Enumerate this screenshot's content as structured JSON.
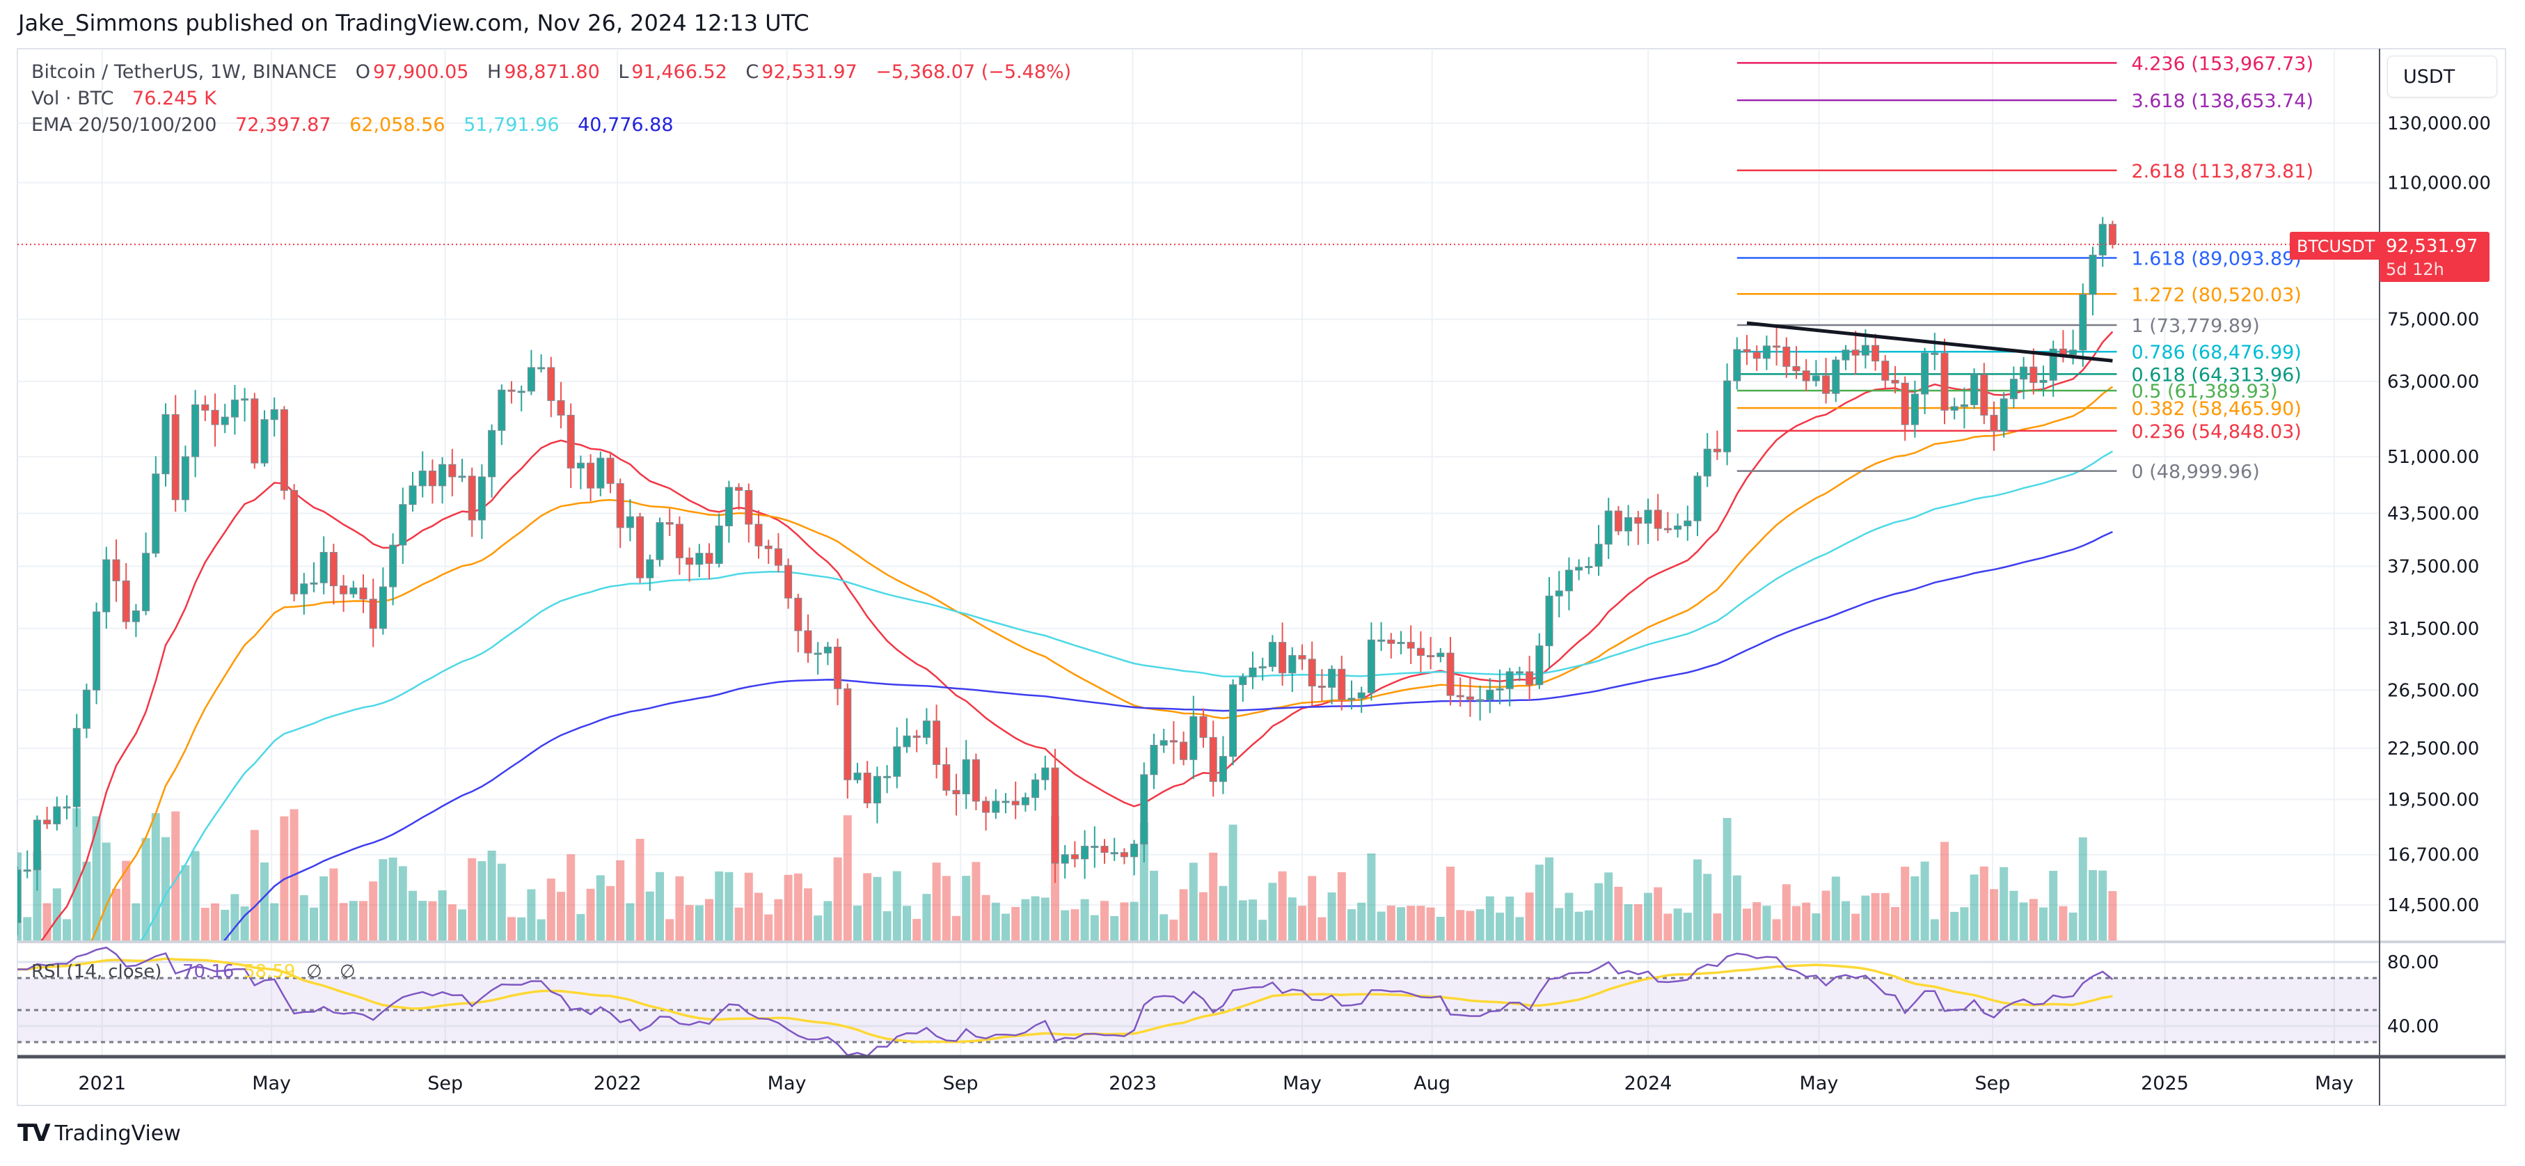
{
  "header": {
    "published": "Jake_Simmons published on TradingView.com, Nov 26, 2024 12:13 UTC"
  },
  "legend": {
    "symbol": "Bitcoin / TetherUS, 1W, BINANCE",
    "o_label": "O",
    "open": "97,900.05",
    "h_label": "H",
    "high": "98,871.80",
    "l_label": "L",
    "low": "91,466.52",
    "c_label": "C",
    "close": "92,531.97",
    "change": "−5,368.07 (−5.48%)",
    "vol_label": "Vol · BTC",
    "vol_value": "76.245 K",
    "ema_label": "EMA 20/50/100/200",
    "ema_values": [
      "72,397.87",
      "62,058.56",
      "51,791.96",
      "40,776.88"
    ]
  },
  "price_axis": {
    "currency": "USDT",
    "ticks": [
      {
        "value": 130000,
        "label": "130,000.00"
      },
      {
        "value": 110000,
        "label": "110,000.00"
      },
      {
        "value": 75000,
        "label": "75,000.00"
      },
      {
        "value": 63000,
        "label": "63,000.00"
      },
      {
        "value": 51000,
        "label": "51,000.00"
      },
      {
        "value": 43500,
        "label": "43,500.00"
      },
      {
        "value": 37500,
        "label": "37,500.00"
      },
      {
        "value": 31500,
        "label": "31,500.00"
      },
      {
        "value": 26500,
        "label": "26,500.00"
      },
      {
        "value": 22500,
        "label": "22,500.00"
      },
      {
        "value": 19500,
        "label": "19,500.00"
      },
      {
        "value": 16700,
        "label": "16,700.00"
      },
      {
        "value": 14500,
        "label": "14,500.00"
      }
    ]
  },
  "last_price": {
    "symbol": "BTCUSDT",
    "price": "92,531.97",
    "countdown": "5d 12h",
    "value": 92531.97
  },
  "fib": [
    {
      "level": "4.236",
      "value": 153967.73,
      "label": "4.236 (153,967.73)",
      "color": "#e91e63"
    },
    {
      "level": "3.618",
      "value": 138653.74,
      "label": "3.618 (138,653.74)",
      "color": "#9c27b0"
    },
    {
      "level": "2.618",
      "value": 113873.81,
      "label": "2.618 (113,873.81)",
      "color": "#f23645"
    },
    {
      "level": "1.618",
      "value": 89093.89,
      "label": "1.618 (89,093.89)",
      "color": "#2962ff"
    },
    {
      "level": "1.272",
      "value": 80520.03,
      "label": "1.272 (80,520.03)",
      "color": "#ff9800"
    },
    {
      "level": "1",
      "value": 73779.89,
      "label": "1 (73,779.89)",
      "color": "#787b86"
    },
    {
      "level": "0.786",
      "value": 68476.99,
      "label": "0.786 (68,476.99)",
      "color": "#00bcd4"
    },
    {
      "level": "0.618",
      "value": 64313.96,
      "label": "0.618 (64,313.96)",
      "color": "#089981"
    },
    {
      "level": "0.5",
      "value": 61389.93,
      "label": "0.5 (61,389.93)",
      "color": "#4caf50"
    },
    {
      "level": "0.382",
      "value": 58465.9,
      "label": "0.382 (58,465.90)",
      "color": "#ff9800"
    },
    {
      "level": "0.236",
      "value": 54848.03,
      "label": "0.236 (54,848.03)",
      "color": "#f23645"
    },
    {
      "level": "0",
      "value": 48999.96,
      "label": "0 (48,999.96)",
      "color": "#787b86"
    }
  ],
  "rsi": {
    "label": "RSI (14, close)",
    "value": "70.16",
    "ma_value": "58.59",
    "extra": [
      "∅",
      "∅"
    ],
    "ticks": [
      {
        "value": 80,
        "label": "80.00"
      },
      {
        "value": 40,
        "label": "40.00"
      }
    ]
  },
  "time_axis": [
    {
      "label": "2021",
      "date": "2021-01-01"
    },
    {
      "label": "May",
      "date": "2021-05-01"
    },
    {
      "label": "Sep",
      "date": "2021-09-01"
    },
    {
      "label": "2022",
      "date": "2022-01-01"
    },
    {
      "label": "May",
      "date": "2022-05-01"
    },
    {
      "label": "Sep",
      "date": "2022-09-01"
    },
    {
      "label": "2023",
      "date": "2023-01-01"
    },
    {
      "label": "May",
      "date": "2023-05-01"
    },
    {
      "label": "Aug",
      "date": "2023-08-01"
    },
    {
      "label": "2024",
      "date": "2024-01-01"
    },
    {
      "label": "May",
      "date": "2024-05-01"
    },
    {
      "label": "Sep",
      "date": "2024-09-01"
    },
    {
      "label": "2025",
      "date": "2025-01-01"
    },
    {
      "label": "May",
      "date": "2025-05-01"
    }
  ],
  "footer": {
    "brand": "TradingView"
  },
  "chart_data": {
    "type": "candlestick",
    "title": "Bitcoin / TetherUS, 1W, BINANCE",
    "interval": "1W",
    "scale": "log",
    "ylim": [
      14000,
      165000
    ],
    "start_week": "2020-11-02",
    "first_open": 13800,
    "closes": [
      16000,
      16000,
      18400,
      18200,
      19100,
      19100,
      23800,
      26500,
      33000,
      38200,
      36000,
      32100,
      33100,
      38900,
      48600,
      57400,
      45200,
      51000,
      59000,
      58100,
      55800,
      57000,
      59800,
      60000,
      50100,
      56600,
      58200,
      46400,
      34700,
      35700,
      35800,
      39000,
      35500,
      34700,
      35300,
      34200,
      31500,
      35400,
      39800,
      44600,
      47000,
      49000,
      47000,
      49900,
      48200,
      48300,
      42700,
      48200,
      54900,
      61500,
      61300,
      61300,
      65500,
      65500,
      59700,
      57300,
      49400,
      50100,
      46700,
      50800,
      47300,
      41800,
      43100,
      36300,
      38200,
      42400,
      42200,
      38400,
      37700,
      38900,
      37800,
      42000,
      46800,
      46400,
      42200,
      39700,
      39400,
      37600,
      34300,
      31300,
      29400,
      29400,
      29900,
      26600,
      20600,
      21000,
      19300,
      20800,
      20800,
      22600,
      23300,
      23200,
      24300,
      21500,
      20000,
      19800,
      21800,
      19400,
      18800,
      19400,
      19400,
      19200,
      19600,
      20600,
      21300,
      16300,
      16700,
      16500,
      17100,
      17100,
      16800,
      16800,
      16600,
      17200,
      20900,
      22700,
      23000,
      22900,
      21800,
      24600,
      23200,
      20500,
      22000,
      26900,
      27500,
      28200,
      28300,
      30300,
      27800,
      29200,
      28900,
      26800,
      26700,
      28100,
      25800,
      25900,
      26300,
      30500,
      30500,
      30200,
      30300,
      29800,
      29200,
      29100,
      29400,
      26100,
      26000,
      25800,
      25800,
      26500,
      26600,
      27900,
      27900,
      26900,
      30000,
      34500,
      35000,
      37100,
      37400,
      37500,
      39900,
      43800,
      41400,
      43000,
      42300,
      43900,
      41700,
      41600,
      42000,
      42600,
      48300,
      52100,
      51700,
      63100,
      68900,
      68400,
      67200,
      69600,
      69400,
      65700,
      64900,
      63100,
      64000,
      60900,
      66900,
      68800,
      67800,
      69700,
      66700,
      63200,
      62700,
      55800,
      60800,
      68200,
      68200,
      58100,
      58700,
      59000,
      64200,
      57300,
      54800,
      60000,
      63400,
      65600,
      62800,
      63200,
      69000,
      67900,
      68800,
      80400,
      89800,
      97900,
      92531.97
    ],
    "last_candle": {
      "open": 97900.05,
      "high": 98871.8,
      "low": 91466.52,
      "close": 92531.97
    },
    "indicators": {
      "ema": [
        {
          "period": 20,
          "color": "#f23645",
          "last": 72397.87
        },
        {
          "period": 50,
          "color": "#ff9800",
          "last": 62058.56
        },
        {
          "period": 100,
          "color": "#4dd8e6",
          "last": 51791.96
        },
        {
          "period": 200,
          "color": "#3d3df0",
          "last": 40776.88
        }
      ],
      "rsi": {
        "period": 14,
        "last": 70.16,
        "ma_last": 58.59,
        "levels": [
          70,
          50,
          30
        ]
      }
    },
    "trendline": {
      "start": {
        "date": "2024-03-11",
        "price": 74200
      },
      "end": {
        "date": "2024-11-25",
        "price": 66750
      }
    },
    "fib_range": {
      "start": "2024-03-04",
      "end": "2024-11-28"
    }
  }
}
